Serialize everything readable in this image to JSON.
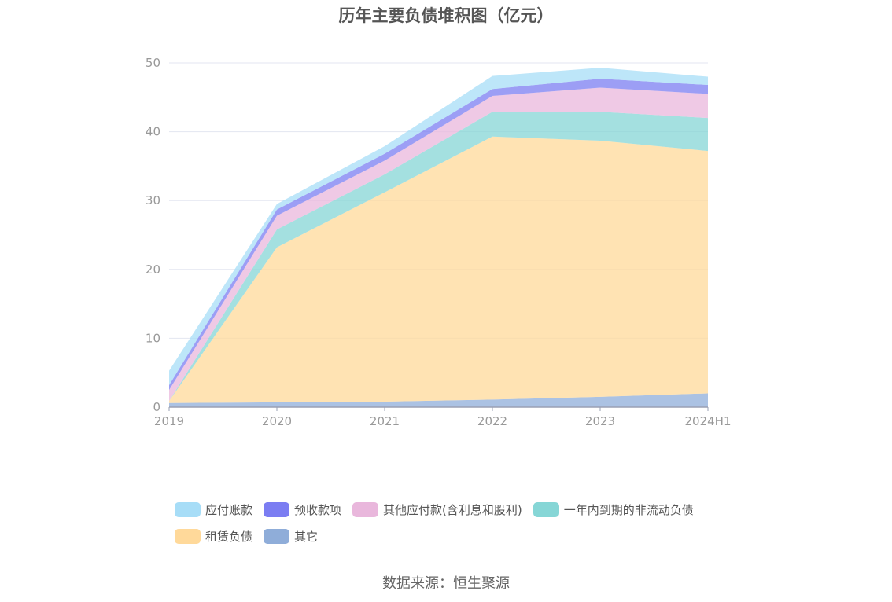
{
  "chart_data": {
    "type": "area",
    "stacked": true,
    "title": "历年主要负债堆积图（亿元）",
    "x": [
      "2019",
      "2020",
      "2021",
      "2022",
      "2023",
      "2024H1"
    ],
    "ylim": [
      0,
      50
    ],
    "yticks": [
      0,
      10,
      20,
      30,
      40,
      50
    ],
    "grid": true,
    "legend_position": "bottom",
    "series": [
      {
        "name": "其它",
        "color": "#8fadd9",
        "values": [
          0.6,
          0.7,
          0.8,
          1.1,
          1.5,
          2.0
        ]
      },
      {
        "name": "租赁负债",
        "color": "#ffd99a",
        "values": [
          0.3,
          22.5,
          30.4,
          38.2,
          37.2,
          35.2
        ]
      },
      {
        "name": "一年内到期的非流动负债",
        "color": "#86d6d6",
        "values": [
          0.0,
          2.6,
          2.6,
          3.6,
          4.2,
          4.8
        ]
      },
      {
        "name": "其他应付款(含利息和股利)",
        "color": "#e9b7dc",
        "values": [
          1.6,
          2.0,
          2.0,
          2.3,
          3.5,
          3.5
        ]
      },
      {
        "name": "预收款项",
        "color": "#7b7df2",
        "values": [
          0.7,
          0.9,
          1.0,
          1.0,
          1.3,
          1.3
        ]
      },
      {
        "name": "应付账款",
        "color": "#a7ddf7",
        "values": [
          2.1,
          0.8,
          1.1,
          1.9,
          1.6,
          1.2
        ]
      }
    ]
  },
  "legend": {
    "rows": [
      [
        {
          "label": "应付账款",
          "color": "#a7ddf7"
        },
        {
          "label": "预收款项",
          "color": "#7b7df2"
        },
        {
          "label": "其他应付款(含利息和股利)",
          "color": "#e9b7dc"
        },
        {
          "label": "一年内到期的非流动负债",
          "color": "#86d6d6"
        }
      ],
      [
        {
          "label": "租赁负债",
          "color": "#ffd99a"
        },
        {
          "label": "其它",
          "color": "#8fadd9"
        }
      ]
    ]
  },
  "source": "数据来源：恒生聚源"
}
